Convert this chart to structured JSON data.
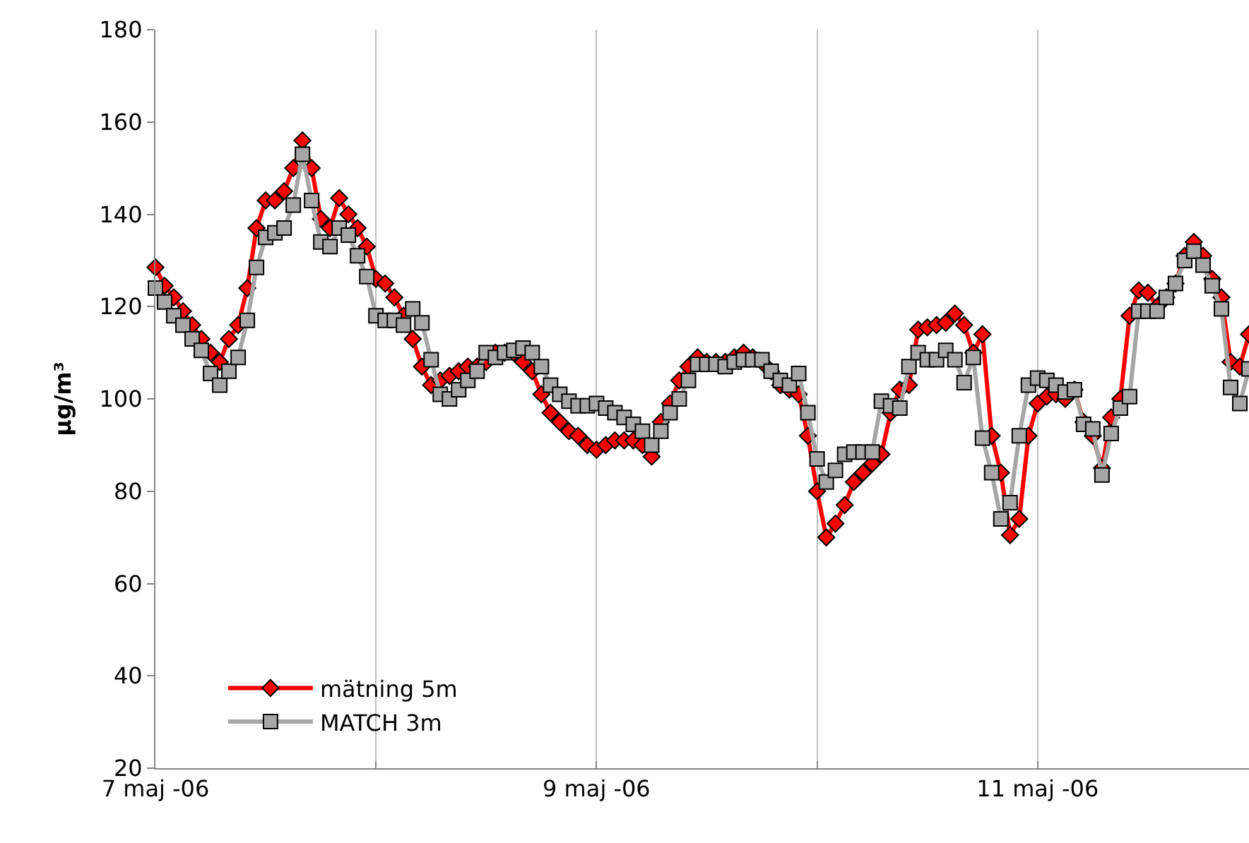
{
  "chart_data": {
    "type": "line",
    "ylabel": "µg/m³",
    "x": [
      "--05-07T00:00",
      "--05-07T01:00",
      "--05-07T02:00",
      "--05-07T03:00",
      "--05-07T04:00",
      "--05-07T05:00",
      "--05-07T06:00",
      "--05-07T07:00",
      "--05-07T08:00",
      "--05-07T09:00",
      "--05-07T10:00",
      "--05-07T11:00",
      "--05-07T12:00",
      "--05-07T13:00",
      "--05-07T14:00",
      "--05-07T15:00",
      "--05-07T16:00",
      "--05-07T17:00",
      "--05-07T18:00",
      "--05-07T19:00",
      "--05-07T20:00",
      "--05-07T21:00",
      "--05-07T22:00",
      "--05-07T23:00",
      "--05-08T00:00",
      "--05-08T01:00",
      "--05-08T02:00",
      "--05-08T03:00",
      "--05-08T04:00",
      "--05-08T05:00",
      "--05-08T06:00",
      "--05-08T07:00",
      "--05-08T08:00",
      "--05-08T09:00",
      "--05-08T10:00",
      "--05-08T11:00",
      "--05-08T12:00",
      "--05-08T13:00",
      "--05-08T14:00",
      "--05-08T15:00",
      "--05-08T16:00",
      "--05-08T17:00",
      "--05-08T18:00",
      "--05-08T19:00",
      "--05-08T20:00",
      "--05-08T21:00",
      "--05-08T22:00",
      "--05-08T23:00",
      "--05-09T00:00",
      "--05-09T01:00",
      "--05-09T02:00",
      "--05-09T03:00",
      "--05-09T04:00",
      "--05-09T05:00",
      "--05-09T06:00",
      "--05-09T07:00",
      "--05-09T08:00",
      "--05-09T09:00",
      "--05-09T10:00",
      "--05-09T11:00",
      "--05-09T12:00",
      "--05-09T13:00",
      "--05-09T14:00",
      "--05-09T15:00",
      "--05-09T16:00",
      "--05-09T17:00",
      "--05-09T18:00",
      "--05-09T19:00",
      "--05-09T20:00",
      "--05-09T21:00",
      "--05-09T22:00",
      "--05-09T23:00",
      "--05-10T00:00",
      "--05-10T01:00",
      "--05-10T02:00",
      "--05-10T03:00",
      "--05-10T04:00",
      "--05-10T05:00",
      "--05-10T06:00",
      "--05-10T07:00",
      "--05-10T08:00",
      "--05-10T09:00",
      "--05-10T10:00",
      "--05-10T11:00",
      "--05-10T12:00",
      "--05-10T13:00",
      "--05-10T14:00",
      "--05-10T15:00",
      "--05-10T16:00",
      "--05-10T17:00",
      "--05-10T18:00",
      "--05-10T19:00",
      "--05-10T20:00",
      "--05-10T21:00",
      "--05-10T22:00",
      "--05-10T23:00",
      "--05-11T00:00",
      "--05-11T01:00",
      "--05-11T02:00",
      "--05-11T03:00",
      "--05-11T04:00",
      "--05-11T05:00",
      "--05-11T06:00",
      "--05-11T07:00",
      "--05-11T08:00",
      "--05-11T09:00",
      "--05-11T10:00",
      "--05-11T11:00",
      "--05-11T12:00",
      "--05-11T13:00",
      "--05-11T14:00",
      "--05-11T15:00",
      "--05-11T16:00",
      "--05-11T17:00",
      "--05-11T18:00",
      "--05-11T19:00",
      "--05-11T20:00",
      "--05-11T21:00",
      "--05-11T22:00",
      "--05-11T23:00"
    ],
    "series": [
      {
        "name": "mätning 5m",
        "color": "#ff0000",
        "marker": "diamond",
        "values": [
          128.5,
          124.5,
          122,
          119,
          116,
          113,
          110,
          108,
          113,
          116,
          124,
          137,
          143,
          143,
          145,
          150,
          156,
          150,
          139,
          137,
          143.5,
          140,
          137,
          133,
          126,
          125,
          122,
          118,
          113,
          107,
          103,
          104,
          105,
          106,
          107,
          107,
          108,
          110,
          110,
          110,
          108,
          106,
          101,
          97,
          95,
          93,
          92,
          90,
          89,
          90,
          91,
          91,
          91,
          90,
          87.5,
          95,
          99,
          104,
          107,
          109,
          108,
          108,
          108,
          109,
          110,
          109,
          108,
          106,
          103,
          102,
          101,
          92,
          80,
          70,
          73,
          77,
          82,
          84,
          86,
          88,
          97,
          102,
          103,
          115,
          115.5,
          116,
          116.5,
          118.5,
          116,
          110,
          114,
          92,
          84,
          70.5,
          74,
          92,
          99,
          100.5,
          101,
          100,
          102,
          95,
          92,
          85,
          96,
          100,
          118,
          123.5,
          123,
          120,
          122,
          125,
          131,
          134,
          131,
          126,
          122,
          108,
          107,
          114
        ]
      },
      {
        "name": "MATCH 3m",
        "color": "#a6a6a6",
        "marker": "square",
        "values": [
          124,
          121,
          118,
          116,
          113,
          110.5,
          105.5,
          103,
          106,
          109,
          117,
          128.5,
          135,
          136,
          137,
          142,
          153,
          143,
          134,
          133,
          137,
          135.5,
          131,
          126.5,
          118,
          117,
          117,
          116,
          119.5,
          116.5,
          108.5,
          101,
          100,
          102,
          104,
          106,
          110,
          109,
          110,
          110.5,
          111,
          110,
          107,
          103,
          101,
          99.5,
          98.5,
          98.5,
          99,
          98,
          97,
          96,
          94.5,
          93,
          90,
          93,
          97,
          100,
          104,
          107.5,
          107.5,
          107.5,
          107,
          108,
          108.5,
          108.5,
          108.5,
          106,
          104,
          103,
          105.5,
          97,
          87,
          82,
          84.5,
          88,
          88.5,
          88.5,
          88.5,
          99.5,
          98.5,
          98,
          107,
          110,
          108.5,
          108.5,
          110.5,
          108.5,
          103.5,
          109,
          91.5,
          84,
          74,
          77.5,
          92,
          103,
          104.5,
          104,
          103,
          101.5,
          102,
          94.5,
          93.5,
          83.5,
          92.5,
          98,
          100.5,
          119,
          119,
          119,
          122,
          125,
          130,
          132,
          129,
          124.5,
          119.5,
          102.5,
          99,
          106.5
        ]
      }
    ],
    "xlim": [
      "--05-07T00:00",
      "--05-11T23:00"
    ],
    "xticks": [
      {
        "value": "--05-07",
        "label": "7 maj -06"
      },
      {
        "value": "--05-08",
        "label": null
      },
      {
        "value": "--05-09",
        "label": "9 maj -06"
      },
      {
        "value": "--05-10",
        "label": null
      },
      {
        "value": "--05-11",
        "label": "11 maj -06"
      }
    ],
    "ylim": [
      20,
      180
    ],
    "yticks": [
      20,
      40,
      60,
      80,
      100,
      120,
      140,
      160,
      180
    ],
    "grid": "x",
    "legend": "bottom left"
  }
}
